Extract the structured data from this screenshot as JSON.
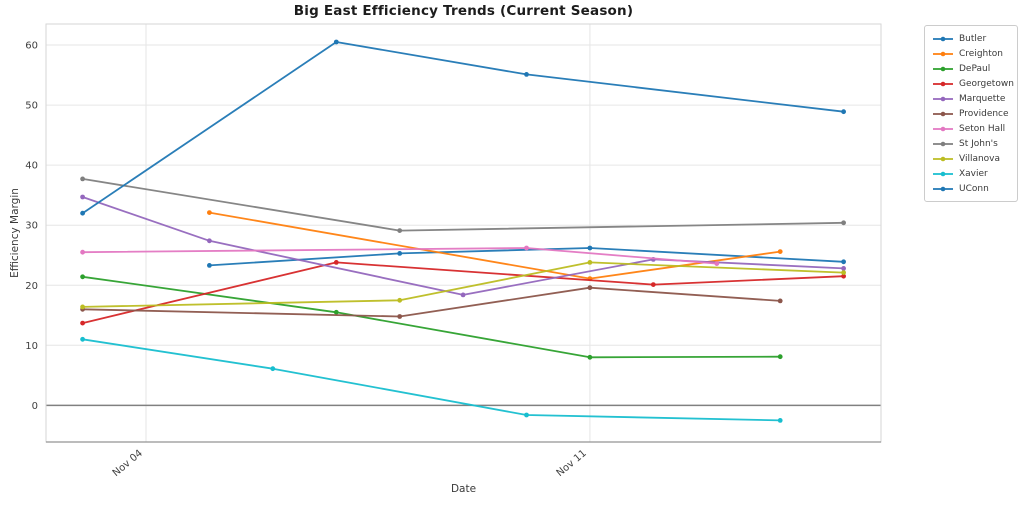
{
  "chart_data": {
    "type": "line",
    "title": "Big East Efficiency Trends (Current Season)",
    "xlabel": "Date",
    "ylabel": "Efficiency Margin",
    "x_categories": [
      "Nov 03",
      "Nov 04",
      "Nov 05",
      "Nov 06",
      "Nov 07",
      "Nov 08",
      "Nov 09",
      "Nov 10",
      "Nov 11",
      "Nov 12",
      "Nov 13",
      "Nov 14",
      "Nov 15"
    ],
    "x_tick_labels": [
      "Nov 04",
      "Nov 11"
    ],
    "y_ticks": [
      0,
      10,
      20,
      30,
      40,
      50,
      60
    ],
    "ylim": [
      -6.1,
      63.5
    ],
    "grid": true,
    "zero_line": 0,
    "legend_position": "outside-upper-right",
    "colors": {
      "grid": "#e6e6e6",
      "zero_line": "#808080",
      "spine": "#d6d6d6",
      "bottom_spine": "#949494",
      "tick_text": "#404040"
    },
    "series": [
      {
        "name": "Butler",
        "color": "#1f77b4",
        "points": [
          [
            "Nov 05",
            23.3
          ],
          [
            "Nov 08",
            25.3
          ],
          [
            "Nov 11",
            26.2
          ],
          [
            "Nov 15",
            23.9
          ]
        ]
      },
      {
        "name": "Creighton",
        "color": "#ff7f0e",
        "points": [
          [
            "Nov 05",
            32.1
          ],
          [
            "Nov 11",
            21.1
          ],
          [
            "Nov 14",
            25.6
          ]
        ]
      },
      {
        "name": "DePaul",
        "color": "#2ca02c",
        "points": [
          [
            "Nov 03",
            21.4
          ],
          [
            "Nov 07",
            15.5
          ],
          [
            "Nov 11",
            8.0
          ],
          [
            "Nov 14",
            8.1
          ]
        ]
      },
      {
        "name": "Georgetown",
        "color": "#d62728",
        "points": [
          [
            "Nov 03",
            13.7
          ],
          [
            "Nov 07",
            23.8
          ],
          [
            "Nov 12",
            20.1
          ],
          [
            "Nov 15",
            21.5
          ]
        ]
      },
      {
        "name": "Marquette",
        "color": "#9467bd",
        "points": [
          [
            "Nov 03",
            34.7
          ],
          [
            "Nov 05",
            27.4
          ],
          [
            "Nov 09",
            18.4
          ],
          [
            "Nov 12",
            24.3
          ],
          [
            "Nov 15",
            22.8
          ]
        ]
      },
      {
        "name": "Providence",
        "color": "#8c564b",
        "points": [
          [
            "Nov 03",
            16.0
          ],
          [
            "Nov 08",
            14.8
          ],
          [
            "Nov 11",
            19.6
          ],
          [
            "Nov 14",
            17.4
          ]
        ]
      },
      {
        "name": "Seton Hall",
        "color": "#e377c2",
        "points": [
          [
            "Nov 03",
            25.5
          ],
          [
            "Nov 10",
            26.2
          ],
          [
            "Nov 13",
            23.6
          ]
        ]
      },
      {
        "name": "St John's",
        "color": "#7f7f7f",
        "points": [
          [
            "Nov 03",
            37.7
          ],
          [
            "Nov 08",
            29.1
          ],
          [
            "Nov 15",
            30.4
          ]
        ]
      },
      {
        "name": "Villanova",
        "color": "#bcbd22",
        "points": [
          [
            "Nov 03",
            16.4
          ],
          [
            "Nov 08",
            17.5
          ],
          [
            "Nov 11",
            23.8
          ],
          [
            "Nov 15",
            22.1
          ]
        ]
      },
      {
        "name": "Xavier",
        "color": "#17becf",
        "points": [
          [
            "Nov 03",
            11.0
          ],
          [
            "Nov 06",
            6.1
          ],
          [
            "Nov 10",
            -1.6
          ],
          [
            "Nov 14",
            -2.5
          ]
        ]
      },
      {
        "name": "UConn",
        "color": "#1f77b4",
        "points": [
          [
            "Nov 03",
            32.0
          ],
          [
            "Nov 07",
            60.5
          ],
          [
            "Nov 10",
            55.1
          ],
          [
            "Nov 15",
            48.9
          ]
        ]
      }
    ]
  }
}
